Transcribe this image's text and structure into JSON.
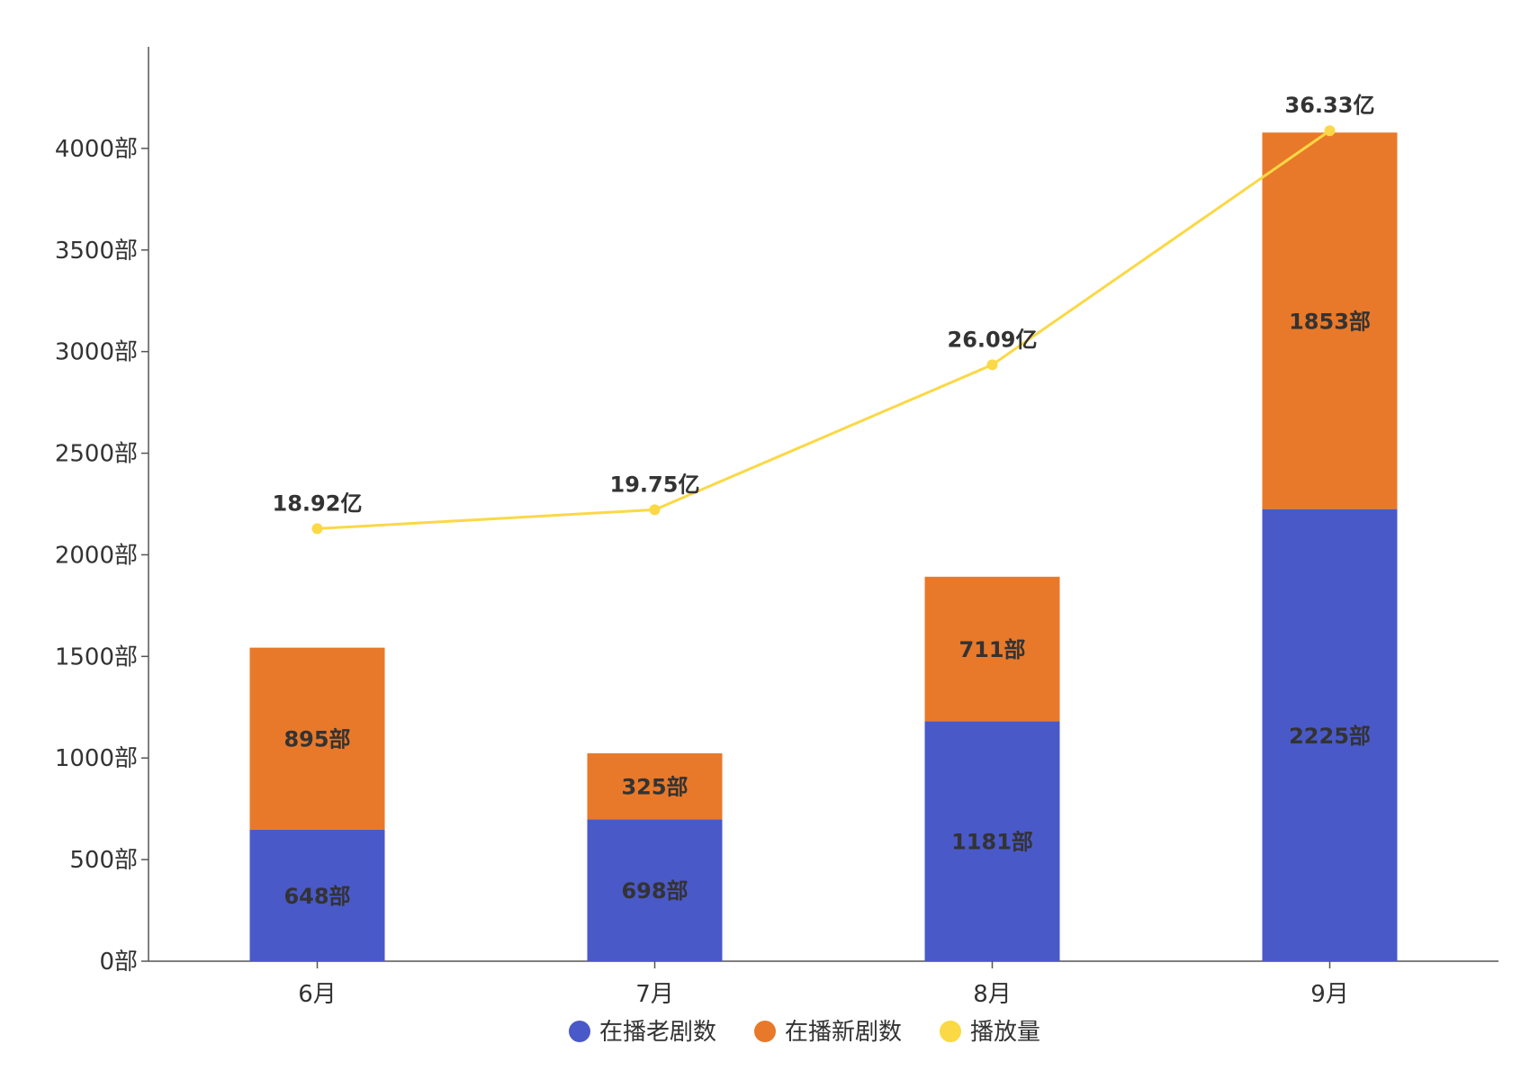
{
  "chart_data": {
    "type": "bar",
    "stacked": true,
    "title": "",
    "xlabel": "",
    "ylabel": "",
    "categories": [
      "6月",
      "7月",
      "8月",
      "9月"
    ],
    "ylim": [
      0,
      4500
    ],
    "yticks": [
      0,
      500,
      1000,
      1500,
      2000,
      2500,
      3000,
      3500,
      4000
    ],
    "y_unit": "部",
    "grid": false,
    "series": [
      {
        "name": "在播老剧数",
        "type": "bar",
        "color": "#4a59c8",
        "values": [
          648,
          698,
          1181,
          2225
        ],
        "labels": [
          "648部",
          "698部",
          "1181部",
          "2225部"
        ]
      },
      {
        "name": "在播新剧数",
        "type": "bar",
        "color": "#e8792a",
        "values": [
          895,
          325,
          711,
          1853
        ],
        "labels": [
          "895部",
          "325部",
          "711部",
          "1853部"
        ]
      },
      {
        "name": "播放量",
        "type": "line",
        "color": "#fbd845",
        "values": [
          18.92,
          19.75,
          26.09,
          36.33
        ],
        "labels": [
          "18.92亿",
          "19.75亿",
          "26.09亿",
          "36.33亿"
        ],
        "ylim": [
          0,
          40
        ]
      }
    ],
    "legend": {
      "position": "bottom",
      "items": [
        "在播老剧数",
        "在播新剧数",
        "播放量"
      ]
    }
  }
}
